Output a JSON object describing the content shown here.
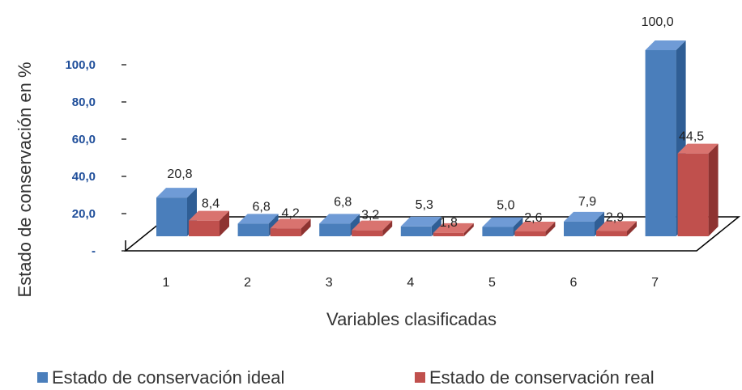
{
  "chart_data": {
    "type": "bar",
    "categories": [
      "1",
      "2",
      "3",
      "4",
      "5",
      "6",
      "7"
    ],
    "series": [
      {
        "name": "Estado de conservación ideal",
        "values": [
          20.8,
          6.8,
          6.8,
          5.3,
          5.0,
          7.9,
          100.0
        ],
        "labels": [
          "20,8",
          "6,8",
          "6,8",
          "5,3",
          "5,0",
          "7,9",
          "100,0"
        ]
      },
      {
        "name": "Estado de conservación real",
        "values": [
          8.4,
          4.2,
          3.2,
          1.8,
          2.6,
          2.9,
          44.5
        ],
        "labels": [
          "8,4",
          "4,2",
          "3,2",
          "1,8",
          "2,6",
          "2,9",
          "44,5"
        ]
      }
    ],
    "ylim": [
      0,
      100
    ],
    "yticks": [
      0,
      20,
      40,
      60,
      80,
      100
    ],
    "ytick_labels": [
      "-",
      "20,0",
      "40,0",
      "60,0",
      "80,0",
      "100,0"
    ],
    "xlabel": "Variables clasificadas",
    "ylabel": "Estado de conservación en %",
    "legend_position": "bottom",
    "grid": false,
    "style": "3d-clustered-column",
    "colors": {
      "ideal_front": "#4A7EBB",
      "ideal_top": "#6F9BD6",
      "ideal_side": "#2F5E95",
      "real_front": "#C0504D",
      "real_top": "#D9736F",
      "real_side": "#8E3331",
      "ytick": "#1F4E9A"
    }
  }
}
